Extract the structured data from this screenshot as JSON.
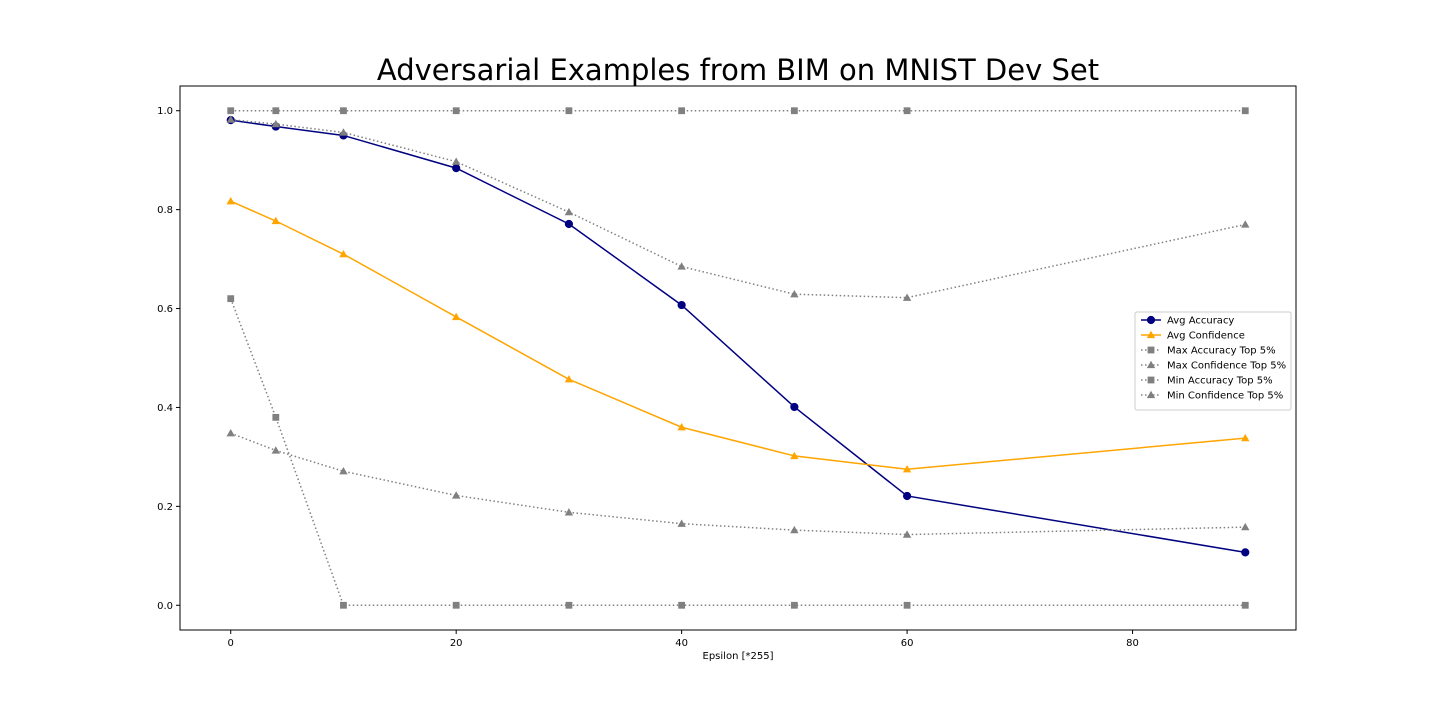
{
  "chart_data": {
    "type": "line",
    "title": "Adversarial Examples from BIM on MNIST Dev Set",
    "xlabel": "Epsilon [*255]",
    "ylabel": "",
    "xlim": [
      -4.5,
      94.5
    ],
    "ylim": [
      -0.05,
      1.05
    ],
    "x_ticks": [
      0,
      20,
      40,
      60,
      80
    ],
    "y_ticks": [
      0.0,
      0.2,
      0.4,
      0.6,
      0.8,
      1.0
    ],
    "x_tick_labels": [
      "0",
      "20",
      "40",
      "60",
      "80"
    ],
    "y_tick_labels": [
      "0.0",
      "0.2",
      "0.4",
      "0.6",
      "0.8",
      "1.0"
    ],
    "grid": false,
    "legend_position": "center-right",
    "x": [
      0,
      4,
      10,
      20,
      30,
      40,
      50,
      60,
      90
    ],
    "series": [
      {
        "name": "Avg Accuracy",
        "values": [
          0.981,
          0.968,
          0.95,
          0.884,
          0.771,
          0.607,
          0.401,
          0.221,
          0.107
        ],
        "color": "#000080",
        "line": "solid",
        "marker": "circle"
      },
      {
        "name": "Avg Confidence",
        "values": [
          0.817,
          0.777,
          0.71,
          0.583,
          0.457,
          0.36,
          0.302,
          0.275,
          0.338
        ],
        "color": "#ffa500",
        "line": "solid",
        "marker": "triangle"
      },
      {
        "name": "Max Accuracy Top 5%",
        "values": [
          1.0,
          1.0,
          1.0,
          1.0,
          1.0,
          1.0,
          1.0,
          1.0,
          1.0
        ],
        "color": "#808080",
        "line": "dotted",
        "marker": "square"
      },
      {
        "name": "Max Confidence Top 5%",
        "values": [
          0.982,
          0.973,
          0.956,
          0.897,
          0.795,
          0.685,
          0.629,
          0.622,
          0.77
        ],
        "color": "#808080",
        "line": "dotted",
        "marker": "triangle"
      },
      {
        "name": "Min Accuracy Top 5%",
        "values": [
          0.62,
          0.38,
          0.0,
          0.0,
          0.0,
          0.0,
          0.0,
          0.0,
          0.0
        ],
        "color": "#808080",
        "line": "dotted",
        "marker": "square"
      },
      {
        "name": "Min Confidence Top 5%",
        "values": [
          0.348,
          0.313,
          0.271,
          0.222,
          0.188,
          0.165,
          0.152,
          0.143,
          0.158
        ],
        "color": "#808080",
        "line": "dotted",
        "marker": "triangle"
      }
    ]
  }
}
